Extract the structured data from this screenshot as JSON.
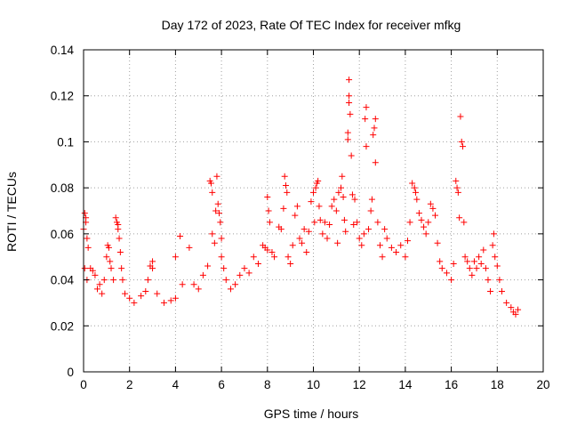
{
  "chart_data": {
    "type": "scatter",
    "title": "Day 172 of 2023, Rate Of TEC Index for receiver mfkg",
    "xlabel": "GPS time / hours",
    "ylabel": "ROTI / TECUs",
    "xlim": [
      0,
      20
    ],
    "ylim": [
      0,
      0.14
    ],
    "x_ticks": [
      0,
      2,
      4,
      6,
      8,
      10,
      12,
      14,
      16,
      18,
      20
    ],
    "y_ticks": [
      0,
      0.02,
      0.04,
      0.06,
      0.08,
      0.1,
      0.12,
      0.14
    ],
    "x_tick_labels": [
      "0",
      "2",
      "4",
      "6",
      "8",
      "10",
      "12",
      "14",
      "16",
      "18",
      "20"
    ],
    "y_tick_labels": [
      "0",
      "0.02",
      "0.04",
      "0.06",
      "0.08",
      "0.1",
      "0.12",
      "0.14"
    ],
    "grid": true,
    "marker": "plus",
    "color": "#ff0000",
    "series": [
      {
        "name": "ROTI",
        "points": [
          [
            0.0,
            0.062
          ],
          [
            0.05,
            0.069
          ],
          [
            0.1,
            0.067
          ],
          [
            0.1,
            0.065
          ],
          [
            0.15,
            0.058
          ],
          [
            0.2,
            0.054
          ],
          [
            0.05,
            0.045
          ],
          [
            0.15,
            0.04
          ],
          [
            0.3,
            0.045
          ],
          [
            0.4,
            0.044
          ],
          [
            0.5,
            0.042
          ],
          [
            0.6,
            0.036
          ],
          [
            0.7,
            0.038
          ],
          [
            0.8,
            0.034
          ],
          [
            0.9,
            0.04
          ],
          [
            1.0,
            0.05
          ],
          [
            1.05,
            0.055
          ],
          [
            1.1,
            0.054
          ],
          [
            1.15,
            0.048
          ],
          [
            1.2,
            0.045
          ],
          [
            1.3,
            0.04
          ],
          [
            1.4,
            0.067
          ],
          [
            1.45,
            0.065
          ],
          [
            1.5,
            0.064
          ],
          [
            1.5,
            0.062
          ],
          [
            1.55,
            0.058
          ],
          [
            1.6,
            0.052
          ],
          [
            1.65,
            0.045
          ],
          [
            1.7,
            0.04
          ],
          [
            1.8,
            0.034
          ],
          [
            2.0,
            0.032
          ],
          [
            2.2,
            0.03
          ],
          [
            2.5,
            0.033
          ],
          [
            2.7,
            0.035
          ],
          [
            2.8,
            0.04
          ],
          [
            2.9,
            0.046
          ],
          [
            3.0,
            0.048
          ],
          [
            3.0,
            0.045
          ],
          [
            3.2,
            0.034
          ],
          [
            3.5,
            0.03
          ],
          [
            3.8,
            0.031
          ],
          [
            4.0,
            0.032
          ],
          [
            4.0,
            0.05
          ],
          [
            4.2,
            0.059
          ],
          [
            4.3,
            0.038
          ],
          [
            4.6,
            0.054
          ],
          [
            4.8,
            0.038
          ],
          [
            5.0,
            0.036
          ],
          [
            5.2,
            0.042
          ],
          [
            5.4,
            0.046
          ],
          [
            5.5,
            0.083
          ],
          [
            5.55,
            0.082
          ],
          [
            5.6,
            0.078
          ],
          [
            5.6,
            0.06
          ],
          [
            5.7,
            0.056
          ],
          [
            5.75,
            0.07
          ],
          [
            5.8,
            0.085
          ],
          [
            5.85,
            0.073
          ],
          [
            5.9,
            0.069
          ],
          [
            5.95,
            0.065
          ],
          [
            6.0,
            0.058
          ],
          [
            6.0,
            0.05
          ],
          [
            6.1,
            0.045
          ],
          [
            6.2,
            0.04
          ],
          [
            6.4,
            0.036
          ],
          [
            6.6,
            0.038
          ],
          [
            6.8,
            0.042
          ],
          [
            7.0,
            0.045
          ],
          [
            7.2,
            0.043
          ],
          [
            7.4,
            0.05
          ],
          [
            7.6,
            0.047
          ],
          [
            7.8,
            0.055
          ],
          [
            7.9,
            0.054
          ],
          [
            8.0,
            0.053
          ],
          [
            8.0,
            0.076
          ],
          [
            8.05,
            0.07
          ],
          [
            8.1,
            0.065
          ],
          [
            8.2,
            0.052
          ],
          [
            8.3,
            0.05
          ],
          [
            8.5,
            0.063
          ],
          [
            8.6,
            0.062
          ],
          [
            8.7,
            0.071
          ],
          [
            8.75,
            0.085
          ],
          [
            8.8,
            0.081
          ],
          [
            8.85,
            0.078
          ],
          [
            8.9,
            0.05
          ],
          [
            9.0,
            0.047
          ],
          [
            9.1,
            0.055
          ],
          [
            9.2,
            0.068
          ],
          [
            9.3,
            0.072
          ],
          [
            9.4,
            0.058
          ],
          [
            9.5,
            0.056
          ],
          [
            9.6,
            0.062
          ],
          [
            9.7,
            0.052
          ],
          [
            9.8,
            0.061
          ],
          [
            9.9,
            0.074
          ],
          [
            10.0,
            0.078
          ],
          [
            10.05,
            0.065
          ],
          [
            10.1,
            0.08
          ],
          [
            10.15,
            0.082
          ],
          [
            10.2,
            0.083
          ],
          [
            10.25,
            0.072
          ],
          [
            10.3,
            0.066
          ],
          [
            10.4,
            0.06
          ],
          [
            10.5,
            0.065
          ],
          [
            10.6,
            0.058
          ],
          [
            10.7,
            0.064
          ],
          [
            10.8,
            0.072
          ],
          [
            10.9,
            0.075
          ],
          [
            11.0,
            0.07
          ],
          [
            11.05,
            0.056
          ],
          [
            11.1,
            0.078
          ],
          [
            11.2,
            0.08
          ],
          [
            11.25,
            0.085
          ],
          [
            11.3,
            0.076
          ],
          [
            11.35,
            0.066
          ],
          [
            11.4,
            0.061
          ],
          [
            11.5,
            0.101
          ],
          [
            11.5,
            0.104
          ],
          [
            11.55,
            0.117
          ],
          [
            11.55,
            0.12
          ],
          [
            11.55,
            0.127
          ],
          [
            11.6,
            0.112
          ],
          [
            11.65,
            0.094
          ],
          [
            11.7,
            0.077
          ],
          [
            11.75,
            0.064
          ],
          [
            11.8,
            0.075
          ],
          [
            11.9,
            0.065
          ],
          [
            12.0,
            0.058
          ],
          [
            12.1,
            0.055
          ],
          [
            12.2,
            0.06
          ],
          [
            12.25,
            0.11
          ],
          [
            12.3,
            0.115
          ],
          [
            12.3,
            0.098
          ],
          [
            12.4,
            0.062
          ],
          [
            12.5,
            0.07
          ],
          [
            12.55,
            0.075
          ],
          [
            12.6,
            0.103
          ],
          [
            12.65,
            0.106
          ],
          [
            12.7,
            0.11
          ],
          [
            12.7,
            0.091
          ],
          [
            12.8,
            0.065
          ],
          [
            12.9,
            0.055
          ],
          [
            13.0,
            0.05
          ],
          [
            13.1,
            0.062
          ],
          [
            13.2,
            0.058
          ],
          [
            13.4,
            0.054
          ],
          [
            13.6,
            0.052
          ],
          [
            13.8,
            0.055
          ],
          [
            14.0,
            0.05
          ],
          [
            14.1,
            0.057
          ],
          [
            14.2,
            0.065
          ],
          [
            14.3,
            0.082
          ],
          [
            14.4,
            0.08
          ],
          [
            14.45,
            0.078
          ],
          [
            14.5,
            0.075
          ],
          [
            14.6,
            0.069
          ],
          [
            14.7,
            0.066
          ],
          [
            14.8,
            0.063
          ],
          [
            14.9,
            0.06
          ],
          [
            15.0,
            0.065
          ],
          [
            15.1,
            0.073
          ],
          [
            15.2,
            0.071
          ],
          [
            15.3,
            0.068
          ],
          [
            15.4,
            0.056
          ],
          [
            15.5,
            0.048
          ],
          [
            15.6,
            0.045
          ],
          [
            15.8,
            0.043
          ],
          [
            16.0,
            0.04
          ],
          [
            16.1,
            0.047
          ],
          [
            16.2,
            0.083
          ],
          [
            16.25,
            0.08
          ],
          [
            16.3,
            0.078
          ],
          [
            16.35,
            0.067
          ],
          [
            16.4,
            0.111
          ],
          [
            16.45,
            0.1
          ],
          [
            16.5,
            0.098
          ],
          [
            16.55,
            0.065
          ],
          [
            16.6,
            0.05
          ],
          [
            16.7,
            0.048
          ],
          [
            16.8,
            0.045
          ],
          [
            16.9,
            0.042
          ],
          [
            17.0,
            0.048
          ],
          [
            17.1,
            0.045
          ],
          [
            17.2,
            0.05
          ],
          [
            17.3,
            0.047
          ],
          [
            17.4,
            0.053
          ],
          [
            17.5,
            0.045
          ],
          [
            17.6,
            0.04
          ],
          [
            17.7,
            0.035
          ],
          [
            17.8,
            0.055
          ],
          [
            17.85,
            0.06
          ],
          [
            17.9,
            0.05
          ],
          [
            18.0,
            0.046
          ],
          [
            18.1,
            0.04
          ],
          [
            18.2,
            0.035
          ],
          [
            18.4,
            0.03
          ],
          [
            18.6,
            0.028
          ],
          [
            18.7,
            0.026
          ],
          [
            18.8,
            0.025
          ],
          [
            18.9,
            0.027
          ]
        ]
      }
    ]
  }
}
